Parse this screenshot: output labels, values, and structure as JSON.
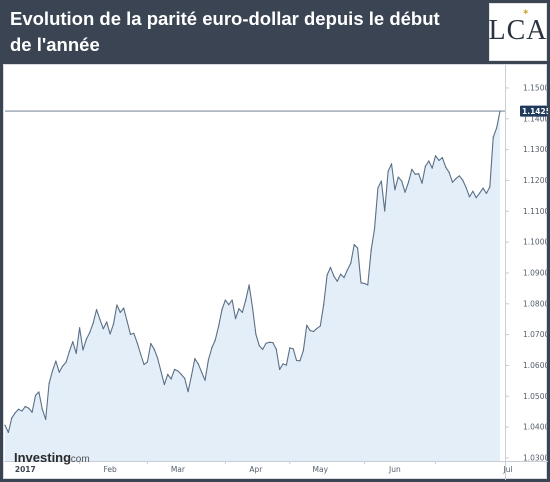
{
  "header": {
    "title": "Evolution de la parité euro-dollar depuis le début de l'année",
    "logo_text": "LCA"
  },
  "watermark": {
    "brand": "Investing",
    "suffix": ".com"
  },
  "colors": {
    "header_bg": "#3a4453",
    "line": "#5b6f86",
    "area": "#e3eef9",
    "badge": "#1f3a5c",
    "last_price_line": "#5b6f86"
  },
  "chart_data": {
    "type": "area",
    "title": "Evolution de la parité euro-dollar depuis le début de l'année",
    "xlabel": "",
    "ylabel": "",
    "x_tick_labels": [
      "2017",
      "Feb",
      "Mar",
      "Apr",
      "May",
      "Jun",
      "Jul"
    ],
    "y_tick_labels": [
      "1.0300",
      "1.0400",
      "1.0500",
      "1.0600",
      "1.0700",
      "1.0800",
      "1.0900",
      "1.1000",
      "1.1100",
      "1.1200",
      "1.1300",
      "1.1400",
      "1.1500"
    ],
    "ylim": [
      1.029,
      1.1555
    ],
    "grid": false,
    "last_value": 1.1425,
    "last_value_label": "1.1425",
    "series": [
      {
        "values": [
          1.0406,
          1.0383,
          1.043,
          1.0446,
          1.0458,
          1.0452,
          1.0467,
          1.0461,
          1.0448,
          1.0503,
          1.0514,
          1.0458,
          1.0425,
          1.0541,
          1.0582,
          1.0614,
          1.0578,
          1.0598,
          1.061,
          1.0646,
          1.0677,
          1.0639,
          1.0722,
          1.065,
          1.0685,
          1.0707,
          1.0737,
          1.0781,
          1.0749,
          1.0719,
          1.0741,
          1.0702,
          1.0734,
          1.0796,
          1.0772,
          1.0786,
          1.0744,
          1.0701,
          1.0704,
          1.0673,
          1.0637,
          1.0603,
          1.0611,
          1.0671,
          1.0653,
          1.0624,
          1.0581,
          1.0538,
          1.0571,
          1.0556,
          1.0587,
          1.0582,
          1.0571,
          1.0558,
          1.0515,
          1.0567,
          1.0622,
          1.0605,
          1.0578,
          1.0552,
          1.0618,
          1.0657,
          1.0682,
          1.0727,
          1.0781,
          1.0812,
          1.0797,
          1.0812,
          1.0752,
          1.0784,
          1.0772,
          1.0812,
          1.0861,
          1.0788,
          1.0701,
          1.0664,
          1.0652,
          1.0672,
          1.0675,
          1.0674,
          1.0653,
          1.0587,
          1.0605,
          1.0601,
          1.0657,
          1.0654,
          1.0616,
          1.0615,
          1.0648,
          1.073,
          1.0713,
          1.071,
          1.072,
          1.0728,
          1.0798,
          1.0893,
          1.0918,
          1.089,
          1.0873,
          1.0896,
          1.0885,
          1.091,
          1.0932,
          1.0992,
          1.0981,
          1.0868,
          1.0866,
          1.0861,
          1.0974,
          1.1044,
          1.1176,
          1.1198,
          1.1101,
          1.1229,
          1.1254,
          1.117,
          1.1211,
          1.1198,
          1.1162,
          1.1194,
          1.1236,
          1.122,
          1.1222,
          1.1191,
          1.1246,
          1.1263,
          1.124,
          1.128,
          1.1265,
          1.1274,
          1.1243,
          1.1226,
          1.1194,
          1.1206,
          1.1215,
          1.1201,
          1.1177,
          1.1147,
          1.1165,
          1.1144,
          1.1159,
          1.1175,
          1.1158,
          1.1179,
          1.134,
          1.137,
          1.1425
        ]
      }
    ]
  }
}
